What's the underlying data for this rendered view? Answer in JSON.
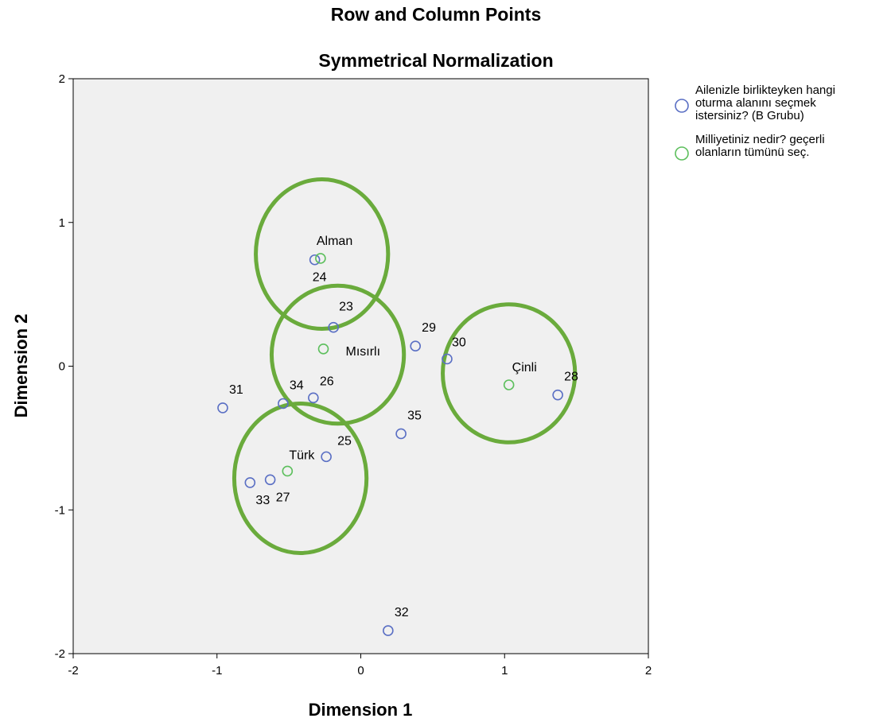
{
  "chart_data": {
    "type": "scatter",
    "title": "Row and Column Points",
    "subtitle": "Symmetrical Normalization",
    "xlabel": "Dimension 1",
    "ylabel": "Dimension 2",
    "xlim": [
      -2,
      2
    ],
    "ylim": [
      -2,
      2
    ],
    "xticks": [
      "-2",
      "-1",
      "0",
      "1",
      "2"
    ],
    "yticks": [
      "-2",
      "-1",
      "0",
      "1",
      "2"
    ],
    "grid": false,
    "legend_position": "right",
    "series": [
      {
        "name": "Ailenizle birlikteyken hangi oturma alanını seçmek istersiniz? (B Grubu)",
        "legend_lines": [
          "Ailenizle birlikteyken hangi",
          "oturma alanını seçmek",
          "istersiniz? (B Grubu)"
        ],
        "color": "#5a6fc4",
        "points": [
          {
            "label": "24",
            "x": -0.32,
            "y": 0.74
          },
          {
            "label": "23",
            "x": -0.19,
            "y": 0.27
          },
          {
            "label": "29",
            "x": 0.38,
            "y": 0.14
          },
          {
            "label": "30",
            "x": 0.6,
            "y": 0.05
          },
          {
            "label": "28",
            "x": 1.37,
            "y": -0.2
          },
          {
            "label": "31",
            "x": -0.96,
            "y": -0.29
          },
          {
            "label": "34",
            "x": -0.54,
            "y": -0.26
          },
          {
            "label": "26",
            "x": -0.33,
            "y": -0.22
          },
          {
            "label": "35",
            "x": 0.28,
            "y": -0.47
          },
          {
            "label": "25",
            "x": -0.24,
            "y": -0.63
          },
          {
            "label": "33",
            "x": -0.77,
            "y": -0.81
          },
          {
            "label": "27",
            "x": -0.63,
            "y": -0.79
          },
          {
            "label": "32",
            "x": 0.19,
            "y": -1.84
          }
        ]
      },
      {
        "name": "Milliyetiniz nedir? geçerli olanların tümünü seç.",
        "legend_lines": [
          "Milliyetiniz nedir? geçerli",
          "olanların tümünü seç."
        ],
        "color": "#5cbf5c",
        "points": [
          {
            "label": "Alman",
            "x": -0.28,
            "y": 0.75
          },
          {
            "label": "Mısırlı",
            "x": -0.26,
            "y": 0.12
          },
          {
            "label": "Çinli",
            "x": 1.03,
            "y": -0.13
          },
          {
            "label": "Türk",
            "x": -0.51,
            "y": -0.73
          }
        ]
      }
    ],
    "annotations": [
      {
        "type": "ellipse",
        "cx": -0.27,
        "cy": 0.78,
        "rx": 0.46,
        "ry": 0.52,
        "color": "#6aab3c"
      },
      {
        "type": "ellipse",
        "cx": -0.16,
        "cy": 0.08,
        "rx": 0.46,
        "ry": 0.48,
        "color": "#6aab3c"
      },
      {
        "type": "ellipse",
        "cx": 1.03,
        "cy": -0.05,
        "rx": 0.46,
        "ry": 0.48,
        "color": "#6aab3c"
      },
      {
        "type": "ellipse",
        "cx": -0.42,
        "cy": -0.78,
        "rx": 0.46,
        "ry": 0.52,
        "color": "#6aab3c"
      }
    ]
  }
}
